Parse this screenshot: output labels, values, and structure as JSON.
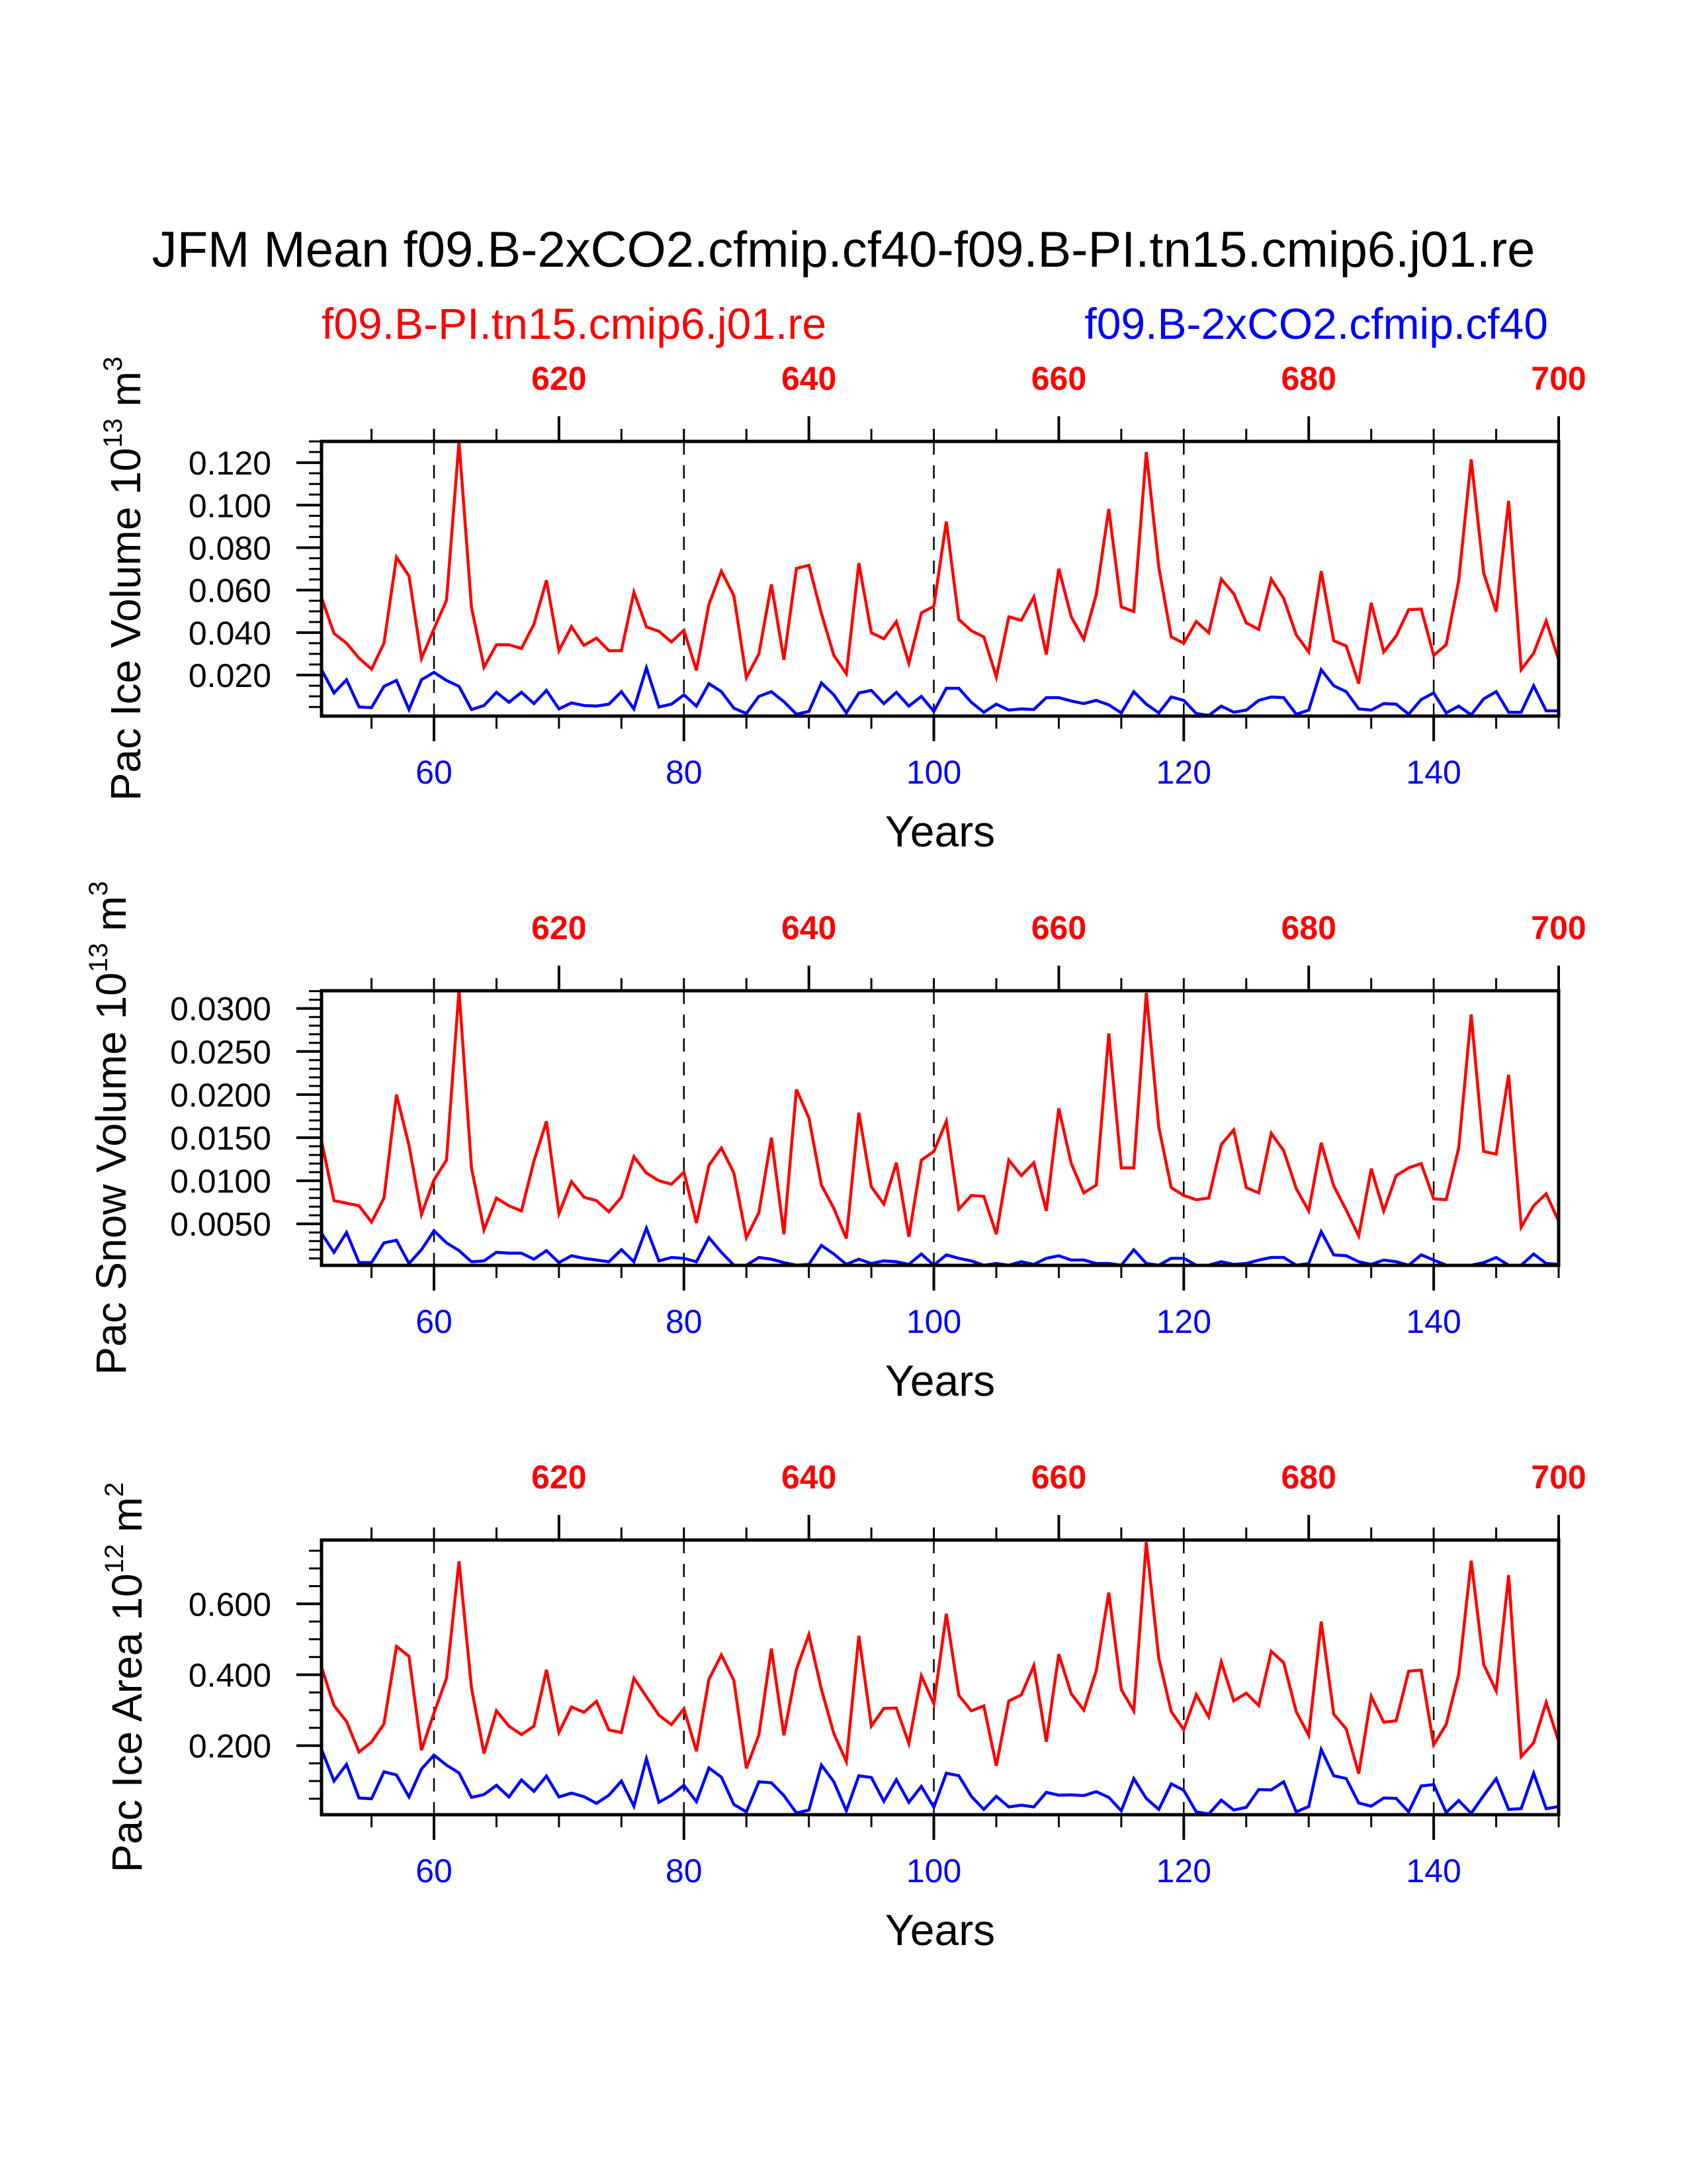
{
  "title": "JFM Mean f09.B-2xCO2.cfmip.cf40-f09.B-PI.tn15.cmip6.j01.re",
  "subtitle_left": "f09.B-PI.tn15.cmip6.j01.re",
  "subtitle_right": "f09.B-2xCO2.cfmip.cf40",
  "colors": {
    "control": "#ff0000",
    "experiment": "#0000ff",
    "axis": "#000000"
  },
  "chart_data": [
    {
      "type": "line",
      "title": "",
      "ylabel": "Pac Ice Volume 10",
      "ylabel_exp": "13",
      "ylabel_unit": "m",
      "ylabel_unit_exp": "3",
      "xlabel": "Years",
      "xlim": [
        51,
        150
      ],
      "ylim": [
        0.0007,
        0.13
      ],
      "x_ticks_major": [
        60,
        80,
        100,
        120,
        140
      ],
      "x_tick_labels": [
        "60",
        "80",
        "100",
        "120",
        "140"
      ],
      "x_ticks_minor_step": 5,
      "top_axis": {
        "offset": 550,
        "ticks": [
          620,
          640,
          660,
          680,
          700
        ],
        "tick_labels": [
          "620",
          "640",
          "660",
          "680",
          "700"
        ],
        "minor_step": 5
      },
      "y_ticks_major": [
        0.02,
        0.04,
        0.06,
        0.08,
        0.1,
        0.12
      ],
      "y_tick_labels": [
        "0.020",
        "0.040",
        "0.060",
        "0.080",
        "0.100",
        "0.120"
      ],
      "y_minor_step": 0.005,
      "grid_x_dashed": [
        60,
        80,
        100,
        120,
        140
      ],
      "legend": "none",
      "x_start": 51,
      "series": [
        {
          "name": "f09.B-PI.tn15.cmip6.j01.re",
          "color": "#ff0000",
          "values": [
            0.0564,
            0.0396,
            0.035,
            0.028,
            0.0228,
            0.035,
            0.0755,
            0.0667,
            0.0278,
            0.0418,
            0.0552,
            0.1297,
            0.0518,
            0.0237,
            0.0343,
            0.0343,
            0.0325,
            0.044,
            0.0646,
            0.0315,
            0.0428,
            0.034,
            0.0374,
            0.0315,
            0.0315,
            0.059,
            0.0427,
            0.0406,
            0.0356,
            0.0411,
            0.0222,
            0.0533,
            0.0689,
            0.0574,
            0.0188,
            0.03,
            0.0627,
            0.0272,
            0.0702,
            0.0717,
            0.049,
            0.0293,
            0.0206,
            0.0727,
            0.0399,
            0.0371,
            0.0452,
            0.0256,
            0.0493,
            0.0524,
            0.0923,
            0.0462,
            0.0409,
            0.038,
            0.0191,
            0.0474,
            0.0458,
            0.0568,
            0.0297,
            0.0701,
            0.0474,
            0.0368,
            0.058,
            0.0982,
            0.0521,
            0.0499,
            0.125,
            0.0708,
            0.038,
            0.035,
            0.0452,
            0.0399,
            0.0652,
            0.0583,
            0.0446,
            0.0415,
            0.0652,
            0.0561,
            0.039,
            0.0309,
            0.0689,
            0.0362,
            0.0337,
            0.016,
            0.054,
            0.0309,
            0.0384,
            0.0508,
            0.0511,
            0.0293,
            0.0343,
            0.0645,
            0.1216,
            0.068,
            0.0499,
            0.102,
            0.0225,
            0.0303,
            0.0455,
            0.0272
          ]
        },
        {
          "name": "f09.B-2xCO2.cfmip.cf40",
          "color": "#0000ff",
          "values": [
            0.0225,
            0.0116,
            0.0178,
            0.005,
            0.0047,
            0.0147,
            0.0175,
            0.0038,
            0.0178,
            0.0213,
            0.0175,
            0.0147,
            0.0038,
            0.0057,
            0.0119,
            0.0072,
            0.0119,
            0.0066,
            0.0128,
            0.0041,
            0.0069,
            0.0057,
            0.0054,
            0.0063,
            0.0122,
            0.0041,
            0.0234,
            0.005,
            0.0063,
            0.0107,
            0.0054,
            0.016,
            0.0122,
            0.0044,
            0.0019,
            0.01,
            0.0122,
            0.0075,
            0.0016,
            0.0029,
            0.0163,
            0.0107,
            0.0022,
            0.0116,
            0.0128,
            0.0066,
            0.0119,
            0.0054,
            0.01,
            0.0029,
            0.0138,
            0.0138,
            0.0072,
            0.0025,
            0.0063,
            0.0035,
            0.0041,
            0.0038,
            0.0094,
            0.0094,
            0.0078,
            0.0066,
            0.0081,
            0.006,
            0.0022,
            0.0122,
            0.0063,
            0.0022,
            0.0097,
            0.0081,
            0.0019,
            0.001,
            0.0054,
            0.0025,
            0.0035,
            0.0081,
            0.0097,
            0.0094,
            0.0016,
            0.0035,
            0.0225,
            0.015,
            0.0122,
            0.0041,
            0.0035,
            0.0066,
            0.0063,
            0.0016,
            0.0085,
            0.0116,
            0.0022,
            0.0054,
            0.0013,
            0.0088,
            0.0122,
            0.0025,
            0.0025,
            0.015,
            0.0032,
            0.0032
          ]
        }
      ]
    },
    {
      "type": "line",
      "title": "",
      "ylabel": "Pac Snow Volume 10",
      "ylabel_exp": "13",
      "ylabel_unit": "m",
      "ylabel_unit_exp": "3",
      "xlabel": "Years",
      "xlim": [
        51,
        150
      ],
      "ylim": [
        0.00018,
        0.03205
      ],
      "x_ticks_major": [
        60,
        80,
        100,
        120,
        140
      ],
      "x_tick_labels": [
        "60",
        "80",
        "100",
        "120",
        "140"
      ],
      "x_ticks_minor_step": 5,
      "top_axis": {
        "offset": 550,
        "ticks": [
          620,
          640,
          660,
          680,
          700
        ],
        "tick_labels": [
          "620",
          "640",
          "660",
          "680",
          "700"
        ],
        "minor_step": 5
      },
      "y_ticks_major": [
        0.005,
        0.01,
        0.015,
        0.02,
        0.025,
        0.03
      ],
      "y_tick_labels": [
        "0.0050",
        "0.0100",
        "0.0150",
        "0.0200",
        "0.0250",
        "0.0300"
      ],
      "y_minor_step": 0.001,
      "grid_x_dashed": [
        60,
        80,
        100,
        120,
        140
      ],
      "legend": "none",
      "x_start": 51,
      "series": [
        {
          "name": "f09.B-PI.tn15.cmip6.j01.re",
          "color": "#ff0000",
          "values": [
            0.0146,
            0.0077,
            0.0074,
            0.0071,
            0.0052,
            0.008,
            0.02,
            0.0141,
            0.0061,
            0.0101,
            0.0124,
            0.0321,
            0.0115,
            0.0043,
            0.008,
            0.0071,
            0.0065,
            0.0123,
            0.0169,
            0.0062,
            0.0099,
            0.0081,
            0.0077,
            0.0064,
            0.0081,
            0.0128,
            0.0109,
            0.01,
            0.0096,
            0.011,
            0.0051,
            0.0118,
            0.0138,
            0.0109,
            0.0034,
            0.0063,
            0.015,
            0.0038,
            0.0206,
            0.0173,
            0.0095,
            0.0068,
            0.0033,
            0.0179,
            0.0093,
            0.0073,
            0.0121,
            0.0035,
            0.0124,
            0.0134,
            0.0169,
            0.0067,
            0.0083,
            0.0082,
            0.0038,
            0.0124,
            0.0106,
            0.0121,
            0.0065,
            0.0184,
            0.012,
            0.0086,
            0.0095,
            0.0271,
            0.0115,
            0.0115,
            0.0318,
            0.0162,
            0.0092,
            0.0083,
            0.0078,
            0.008,
            0.0142,
            0.0159,
            0.0092,
            0.0086,
            0.0155,
            0.0135,
            0.0091,
            0.0065,
            0.0144,
            0.0094,
            0.0066,
            0.0036,
            0.0114,
            0.0065,
            0.0106,
            0.0115,
            0.012,
            0.0079,
            0.0078,
            0.0138,
            0.0293,
            0.0134,
            0.0131,
            0.0223,
            0.0046,
            0.0071,
            0.0085,
            0.0053
          ]
        },
        {
          "name": "f09.B-2xCO2.cfmip.cf40",
          "color": "#0000ff",
          "values": [
            0.0039,
            0.0017,
            0.004,
            0.0005,
            0.0005,
            0.0028,
            0.0031,
            0.0004,
            0.002,
            0.0042,
            0.0028,
            0.0019,
            0.0006,
            0.0007,
            0.0017,
            0.0016,
            0.0016,
            0.0009,
            0.0019,
            0.0005,
            0.0013,
            0.001,
            0.0008,
            0.0006,
            0.002,
            0.0006,
            0.0045,
            0.0007,
            0.0011,
            0.001,
            0.0006,
            0.0034,
            0.0017,
            0.0002,
            0.0002,
            0.0011,
            0.0009,
            0.0005,
            0.0002,
            0.0003,
            0.0025,
            0.0015,
            0.0003,
            0.0009,
            0.0004,
            0.0007,
            0.0006,
            0.0003,
            0.0015,
            0.0002,
            0.0014,
            0.001,
            0.0007,
            0.0002,
            0.0004,
            0.0002,
            0.0006,
            0.0003,
            0.001,
            0.0013,
            0.0008,
            0.0008,
            0.0004,
            0.0004,
            0.0002,
            0.002,
            0.0004,
            0.0002,
            0.001,
            0.001,
            0.0002,
            0.0002,
            0.0006,
            0.0003,
            0.0004,
            0.0008,
            0.0011,
            0.0011,
            0.0002,
            0.0004,
            0.0041,
            0.0014,
            0.0013,
            0.0006,
            0.0003,
            0.0008,
            0.0006,
            0.0002,
            0.0014,
            0.0008,
            0.0002,
            0.0002,
            0.0002,
            0.0005,
            0.0011,
            0.0002,
            0.0002,
            0.0015,
            0.0004,
            0.0003
          ]
        }
      ]
    },
    {
      "type": "line",
      "title": "",
      "ylabel": "Pac Ice Area 10",
      "ylabel_exp": "12",
      "ylabel_unit": "m",
      "ylabel_unit_exp": "2",
      "xlabel": "Years",
      "xlim": [
        51,
        150
      ],
      "ylim": [
        0.005,
        0.78
      ],
      "x_ticks_major": [
        60,
        80,
        100,
        120,
        140
      ],
      "x_tick_labels": [
        "60",
        "80",
        "100",
        "120",
        "140"
      ],
      "x_ticks_minor_step": 5,
      "top_axis": {
        "offset": 550,
        "ticks": [
          620,
          640,
          660,
          680,
          700
        ],
        "tick_labels": [
          "620",
          "640",
          "660",
          "680",
          "700"
        ],
        "minor_step": 5
      },
      "y_ticks_major": [
        0.2,
        0.4,
        0.6
      ],
      "y_tick_labels": [
        "0.200",
        "0.400",
        "0.600"
      ],
      "y_minor_step": 0.05,
      "grid_x_dashed": [
        60,
        80,
        100,
        120,
        140
      ],
      "legend": "none",
      "x_start": 51,
      "series": [
        {
          "name": "f09.B-PI.tn15.cmip6.j01.re",
          "color": "#ff0000",
          "values": [
            0.421,
            0.313,
            0.268,
            0.182,
            0.21,
            0.261,
            0.48,
            0.452,
            0.187,
            0.292,
            0.39,
            0.72,
            0.362,
            0.178,
            0.298,
            0.255,
            0.231,
            0.255,
            0.414,
            0.237,
            0.309,
            0.294,
            0.325,
            0.244,
            0.237,
            0.39,
            0.338,
            0.286,
            0.259,
            0.304,
            0.184,
            0.387,
            0.456,
            0.384,
            0.136,
            0.23,
            0.474,
            0.229,
            0.415,
            0.513,
            0.359,
            0.234,
            0.155,
            0.51,
            0.255,
            0.305,
            0.306,
            0.206,
            0.397,
            0.318,
            0.572,
            0.342,
            0.298,
            0.312,
            0.143,
            0.326,
            0.343,
            0.426,
            0.211,
            0.458,
            0.346,
            0.3,
            0.412,
            0.632,
            0.358,
            0.298,
            0.774,
            0.446,
            0.296,
            0.245,
            0.344,
            0.281,
            0.436,
            0.326,
            0.348,
            0.313,
            0.466,
            0.434,
            0.296,
            0.229,
            0.55,
            0.289,
            0.247,
            0.121,
            0.339,
            0.266,
            0.27,
            0.41,
            0.413,
            0.202,
            0.26,
            0.401,
            0.722,
            0.429,
            0.354,
            0.681,
            0.169,
            0.208,
            0.322,
            0.212
          ]
        },
        {
          "name": "f09.B-2xCO2.cfmip.cf40",
          "color": "#0000ff",
          "values": [
            0.189,
            0.1,
            0.147,
            0.052,
            0.05,
            0.126,
            0.117,
            0.055,
            0.134,
            0.173,
            0.145,
            0.123,
            0.054,
            0.062,
            0.088,
            0.055,
            0.103,
            0.071,
            0.114,
            0.055,
            0.066,
            0.056,
            0.037,
            0.06,
            0.1,
            0.029,
            0.163,
            0.04,
            0.06,
            0.088,
            0.042,
            0.137,
            0.111,
            0.034,
            0.013,
            0.098,
            0.095,
            0.059,
            0.01,
            0.018,
            0.145,
            0.098,
            0.016,
            0.115,
            0.11,
            0.043,
            0.104,
            0.04,
            0.085,
            0.026,
            0.122,
            0.115,
            0.057,
            0.02,
            0.057,
            0.027,
            0.032,
            0.027,
            0.068,
            0.06,
            0.061,
            0.059,
            0.07,
            0.054,
            0.016,
            0.107,
            0.051,
            0.02,
            0.092,
            0.074,
            0.013,
            0.007,
            0.046,
            0.018,
            0.026,
            0.076,
            0.075,
            0.098,
            0.013,
            0.028,
            0.189,
            0.115,
            0.107,
            0.038,
            0.029,
            0.052,
            0.051,
            0.013,
            0.086,
            0.09,
            0.011,
            0.045,
            0.009,
            0.059,
            0.107,
            0.02,
            0.022,
            0.122,
            0.022,
            0.028
          ]
        }
      ]
    }
  ]
}
